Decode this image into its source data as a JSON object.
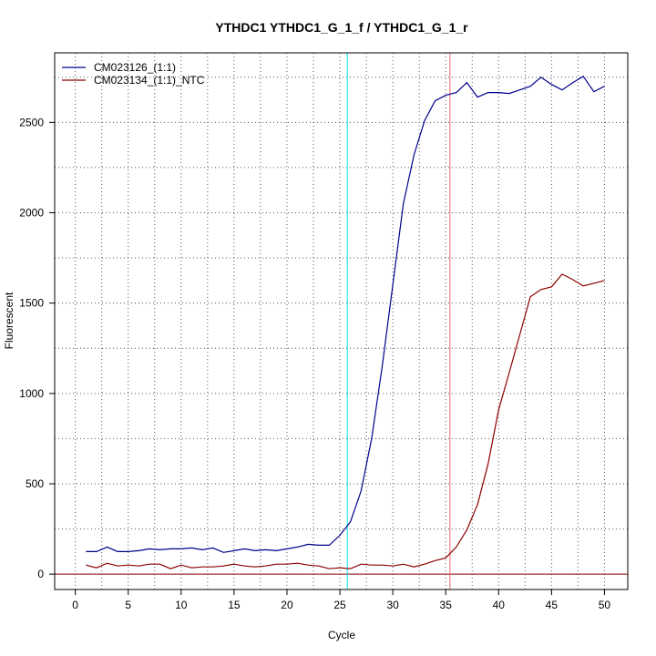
{
  "chart_data": {
    "type": "line",
    "title": "YTHDC1  YTHDC1_G_1_f / YTHDC1_G_1_r",
    "xlabel": "Cycle",
    "ylabel": "Fluorescent",
    "xlim": [
      -1.95,
      52.2
    ],
    "ylim": [
      -85,
      2885
    ],
    "xticks": [
      0,
      5,
      10,
      15,
      20,
      25,
      30,
      35,
      40,
      45,
      50
    ],
    "yticks": [
      0,
      500,
      1000,
      1500,
      2000,
      2500
    ],
    "grid": true,
    "legend_position": "top-left",
    "x": [
      1,
      2,
      3,
      4,
      5,
      6,
      7,
      8,
      9,
      10,
      11,
      12,
      13,
      14,
      15,
      16,
      17,
      18,
      19,
      20,
      21,
      22,
      23,
      24,
      25,
      26,
      27,
      28,
      29,
      30,
      31,
      32,
      33,
      34,
      35,
      36,
      37,
      38,
      39,
      40,
      41,
      42,
      43,
      44,
      45,
      46,
      47,
      48,
      49,
      50
    ],
    "series": [
      {
        "name": "CM023126_(1:1)",
        "color": "#00008B",
        "values": [
          125,
          125,
          150,
          125,
          125,
          130,
          140,
          135,
          140,
          140,
          145,
          135,
          145,
          120,
          130,
          140,
          130,
          135,
          130,
          140,
          150,
          165,
          160,
          160,
          215,
          290,
          460,
          750,
          1150,
          1600,
          2050,
          2320,
          2510,
          2620,
          2650,
          2665,
          2720,
          2640,
          2665,
          2665,
          2660,
          2680,
          2700,
          2750,
          2710,
          2680,
          2720,
          2755,
          2670,
          2700
        ]
      },
      {
        "name": "CM023134_(1:1)_NTC",
        "color": "#8B0000",
        "values": [
          50,
          35,
          60,
          45,
          50,
          45,
          55,
          55,
          30,
          50,
          35,
          40,
          40,
          45,
          55,
          45,
          40,
          45,
          55,
          55,
          60,
          50,
          45,
          30,
          35,
          30,
          55,
          50,
          50,
          45,
          55,
          40,
          55,
          75,
          90,
          150,
          245,
          385,
          610,
          910,
          1115,
          1325,
          1535,
          1575,
          1590,
          1660,
          1630,
          1595,
          1610,
          1625
        ]
      }
    ],
    "vlines": [
      {
        "x": 25.7,
        "color": "#00E5EE"
      },
      {
        "x": 35.4,
        "color": "#EE6A6A"
      }
    ],
    "hlines": [
      {
        "y": 0,
        "color": "#8B0000"
      }
    ]
  }
}
